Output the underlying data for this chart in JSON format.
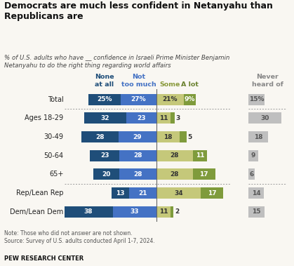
{
  "title": "Democrats are much less confident in Netanyahu than\nRepublicans are",
  "subtitle": "% of U.S. adults who have __ confidence in Israeli Prime Minister Benjamin\nNetanyahu to do the right thing regarding world affairs",
  "note": "Note: Those who did not answer are not shown.\nSource: Survey of U.S. adults conducted April 1-7, 2024.",
  "source_label": "PEW RESEARCH CENTER",
  "categories": [
    "Total",
    "Ages 18-29",
    "30-49",
    "50-64",
    "65+",
    "Rep/Lean Rep",
    "Dem/Lean Dem"
  ],
  "none_at_all": [
    25,
    32,
    28,
    23,
    20,
    13,
    38
  ],
  "not_too_much": [
    27,
    23,
    29,
    28,
    28,
    21,
    33
  ],
  "some": [
    21,
    11,
    18,
    28,
    28,
    34,
    11
  ],
  "a_lot": [
    9,
    3,
    5,
    11,
    17,
    17,
    2
  ],
  "never_heard": [
    15,
    30,
    18,
    9,
    6,
    14,
    15
  ],
  "color_none": "#1f4e79",
  "color_not_much": "#4472c4",
  "color_some": "#c5c87a",
  "color_a_lot": "#7f9b3c",
  "color_never": "#bfbfbf",
  "bg_color": "#f9f7f2",
  "xlim_left": -70,
  "xlim_right": 57,
  "bar_height": 0.6
}
